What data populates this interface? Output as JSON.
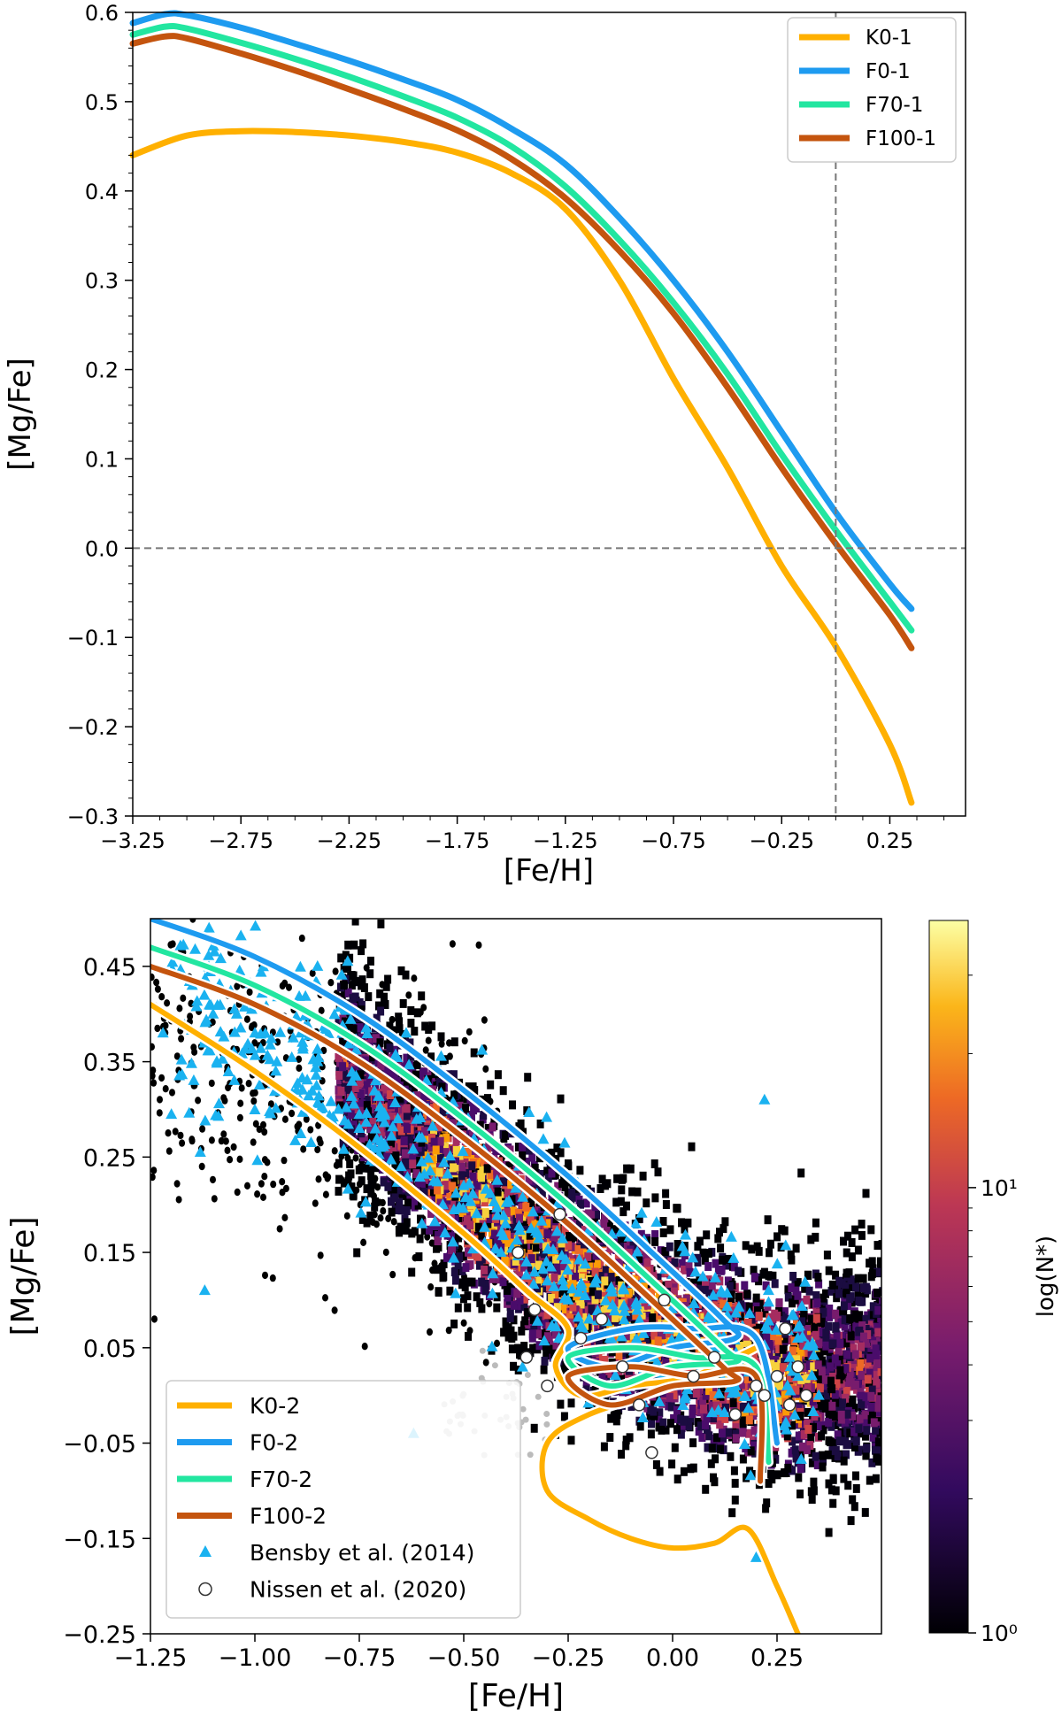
{
  "chart_data": [
    {
      "type": "line",
      "xlabel": "[Fe/H]",
      "ylabel": "[Mg/Fe]",
      "xlim": [
        -3.25,
        0.6
      ],
      "ylim": [
        -0.3,
        0.6
      ],
      "xticks": [
        "−3.25",
        "−2.75",
        "−2.25",
        "−1.75",
        "−1.25",
        "−0.75",
        "−0.25",
        "0.25"
      ],
      "xtick_values": [
        -3.25,
        -2.75,
        -2.25,
        -1.75,
        -1.25,
        -0.75,
        -0.25,
        0.25
      ],
      "yticks": [
        "−0.3",
        "−0.2",
        "−0.1",
        "0.0",
        "0.1",
        "0.2",
        "0.3",
        "0.4",
        "0.5",
        "0.6"
      ],
      "ytick_values": [
        -0.3,
        -0.2,
        -0.1,
        0.0,
        0.1,
        0.2,
        0.3,
        0.4,
        0.5,
        0.6
      ],
      "reference_lines": {
        "x": 0.0,
        "y": 0.0
      },
      "legend_position": "top-right",
      "grid": false,
      "series": [
        {
          "name": "K0-1",
          "color": "#ffb000",
          "x": [
            -3.25,
            -3.0,
            -2.75,
            -2.5,
            -2.25,
            -2.0,
            -1.75,
            -1.5,
            -1.25,
            -1.0,
            -0.75,
            -0.5,
            -0.25,
            0.0,
            0.25,
            0.35
          ],
          "y": [
            0.44,
            0.462,
            0.467,
            0.466,
            0.462,
            0.455,
            0.443,
            0.42,
            0.38,
            0.3,
            0.19,
            0.09,
            -0.02,
            -0.11,
            -0.22,
            -0.285
          ]
        },
        {
          "name": "F0-1",
          "color": "#1e9bf0",
          "x": [
            -3.25,
            -3.1,
            -3.0,
            -2.75,
            -2.5,
            -2.25,
            -2.0,
            -1.75,
            -1.5,
            -1.25,
            -1.0,
            -0.75,
            -0.5,
            -0.25,
            0.0,
            0.25,
            0.35
          ],
          "y": [
            0.588,
            0.598,
            0.597,
            0.583,
            0.565,
            0.546,
            0.525,
            0.502,
            0.47,
            0.43,
            0.37,
            0.3,
            0.22,
            0.13,
            0.04,
            -0.04,
            -0.068
          ]
        },
        {
          "name": "F70-1",
          "color": "#22e6a0",
          "x": [
            -3.25,
            -3.1,
            -3.0,
            -2.75,
            -2.5,
            -2.25,
            -2.0,
            -1.75,
            -1.5,
            -1.25,
            -1.0,
            -0.75,
            -0.5,
            -0.25,
            0.0,
            0.25,
            0.35
          ],
          "y": [
            0.575,
            0.584,
            0.582,
            0.566,
            0.548,
            0.528,
            0.506,
            0.482,
            0.45,
            0.405,
            0.345,
            0.275,
            0.195,
            0.105,
            0.02,
            -0.06,
            -0.092
          ]
        },
        {
          "name": "F100-1",
          "color": "#c4540e",
          "x": [
            -3.25,
            -3.1,
            -3.0,
            -2.75,
            -2.5,
            -2.25,
            -2.0,
            -1.75,
            -1.5,
            -1.25,
            -1.0,
            -0.75,
            -0.5,
            -0.25,
            0.0,
            0.25,
            0.35
          ],
          "y": [
            0.565,
            0.573,
            0.571,
            0.554,
            0.535,
            0.514,
            0.492,
            0.468,
            0.436,
            0.392,
            0.333,
            0.263,
            0.18,
            0.09,
            0.005,
            -0.075,
            -0.112
          ]
        }
      ]
    },
    {
      "type": "scatter",
      "xlabel": "[Fe/H]",
      "ylabel": "[Mg/Fe]",
      "xlim": [
        -1.25,
        0.5
      ],
      "ylim": [
        -0.25,
        0.5
      ],
      "xticks": [
        "−1.25",
        "−1.00",
        "−0.75",
        "−0.50",
        "−0.25",
        "0.00",
        "0.25"
      ],
      "xtick_values": [
        -1.25,
        -1.0,
        -0.75,
        -0.5,
        -0.25,
        0.0,
        0.25
      ],
      "yticks": [
        "−0.25",
        "−0.15",
        "−0.05",
        "0.05",
        "0.15",
        "0.25",
        "0.35",
        "0.45"
      ],
      "ytick_values": [
        -0.25,
        -0.15,
        -0.05,
        0.05,
        0.15,
        0.25,
        0.35,
        0.45
      ],
      "legend_position": "bottom-left",
      "grid": false,
      "colorbar": {
        "label": "log(N*)",
        "ticks": [
          "10⁰",
          "10¹"
        ],
        "tick_values": [
          0,
          1
        ],
        "max_log": 1.6
      },
      "density_ridge": {
        "x": [
          -0.75,
          -0.5,
          -0.25,
          0.0,
          0.25,
          0.45
        ],
        "y": [
          0.33,
          0.22,
          0.12,
          0.06,
          0.02,
          0.03
        ]
      },
      "series": [
        {
          "name": "K0-2",
          "color": "#ffb000",
          "x": [
            -1.25,
            -1.0,
            -0.75,
            -0.5,
            -0.35,
            -0.25,
            -0.28,
            -0.22,
            -0.1,
            0.05,
            0.2,
            0.0,
            -0.2,
            -0.3,
            -0.3,
            -0.2,
            -0.1,
            0.0,
            0.1,
            0.18,
            0.25,
            0.3
          ],
          "y": [
            0.41,
            0.34,
            0.26,
            0.17,
            0.11,
            0.07,
            0.03,
            0.0,
            0.01,
            0.02,
            0.05,
            0.01,
            -0.02,
            -0.05,
            -0.1,
            -0.13,
            -0.15,
            -0.16,
            -0.155,
            -0.14,
            -0.2,
            -0.25
          ]
        },
        {
          "name": "F0-2",
          "color": "#1e9bf0",
          "x": [
            -1.25,
            -1.0,
            -0.75,
            -0.5,
            -0.25,
            -0.05,
            0.12,
            0.15,
            0.0,
            -0.15,
            -0.25,
            -0.1,
            0.05,
            0.2,
            0.25
          ],
          "y": [
            0.5,
            0.46,
            0.4,
            0.32,
            0.23,
            0.15,
            0.08,
            0.06,
            0.05,
            0.03,
            0.05,
            0.07,
            0.07,
            0.06,
            -0.05
          ]
        },
        {
          "name": "F70-2",
          "color": "#22e6a0",
          "x": [
            -1.25,
            -1.0,
            -0.75,
            -0.5,
            -0.25,
            -0.05,
            0.12,
            0.15,
            0.0,
            -0.15,
            -0.25,
            -0.1,
            0.05,
            0.2,
            0.23
          ],
          "y": [
            0.47,
            0.43,
            0.37,
            0.29,
            0.2,
            0.12,
            0.05,
            0.035,
            0.03,
            0.01,
            0.04,
            0.05,
            0.04,
            0.03,
            -0.07
          ]
        },
        {
          "name": "F100-2",
          "color": "#c4540e",
          "x": [
            -1.25,
            -1.0,
            -0.75,
            -0.5,
            -0.25,
            -0.05,
            0.12,
            0.15,
            0.0,
            -0.15,
            -0.25,
            -0.1,
            0.05,
            0.2,
            0.21
          ],
          "y": [
            0.45,
            0.41,
            0.35,
            0.27,
            0.18,
            0.1,
            0.03,
            0.015,
            0.01,
            -0.01,
            0.02,
            0.03,
            0.02,
            0.02,
            -0.09
          ]
        },
        {
          "name": "Bensby et al. (2014)",
          "color": "#1ab2f0",
          "marker": "triangle",
          "x": [
            -1.22,
            -1.15,
            -1.1,
            -1.05,
            -1.0,
            -0.95,
            -0.9,
            -0.85,
            -0.8,
            -0.75,
            -0.7,
            -0.65,
            -0.6,
            -0.55,
            -0.5,
            -0.45,
            -0.4,
            -0.35,
            -0.3,
            -0.25,
            -0.2,
            -0.15,
            -0.1,
            -0.05,
            0.0,
            0.05,
            0.1,
            0.15,
            0.2,
            0.25,
            0.3,
            0.35,
            -1.12,
            -0.85,
            -0.6,
            0.22,
            -0.62,
            0.2
          ],
          "y": [
            0.38,
            0.43,
            0.4,
            0.36,
            0.38,
            0.34,
            0.32,
            0.35,
            0.3,
            0.28,
            0.26,
            0.24,
            0.27,
            0.2,
            0.22,
            0.16,
            0.18,
            0.14,
            0.12,
            0.1,
            0.08,
            0.06,
            0.07,
            0.04,
            0.03,
            0.02,
            0.05,
            0.01,
            0.0,
            -0.01,
            0.02,
            0.0,
            0.11,
            0.45,
            0.18,
            0.31,
            -0.04,
            -0.17
          ]
        },
        {
          "name": "Nissen et al. (2020)",
          "color": "#ffffff",
          "marker": "circle",
          "x": [
            -0.37,
            -0.33,
            -0.3,
            -0.27,
            -0.22,
            -0.17,
            -0.12,
            -0.08,
            -0.02,
            0.05,
            0.1,
            0.15,
            0.2,
            0.22,
            0.27,
            0.3,
            0.32,
            0.28,
            0.25,
            -0.35,
            -0.05
          ],
          "y": [
            0.15,
            0.09,
            0.01,
            0.19,
            0.06,
            0.08,
            0.03,
            -0.01,
            0.1,
            0.02,
            0.04,
            -0.02,
            0.01,
            0.0,
            0.07,
            0.03,
            0.0,
            -0.01,
            0.02,
            0.04,
            -0.06
          ]
        }
      ]
    }
  ]
}
